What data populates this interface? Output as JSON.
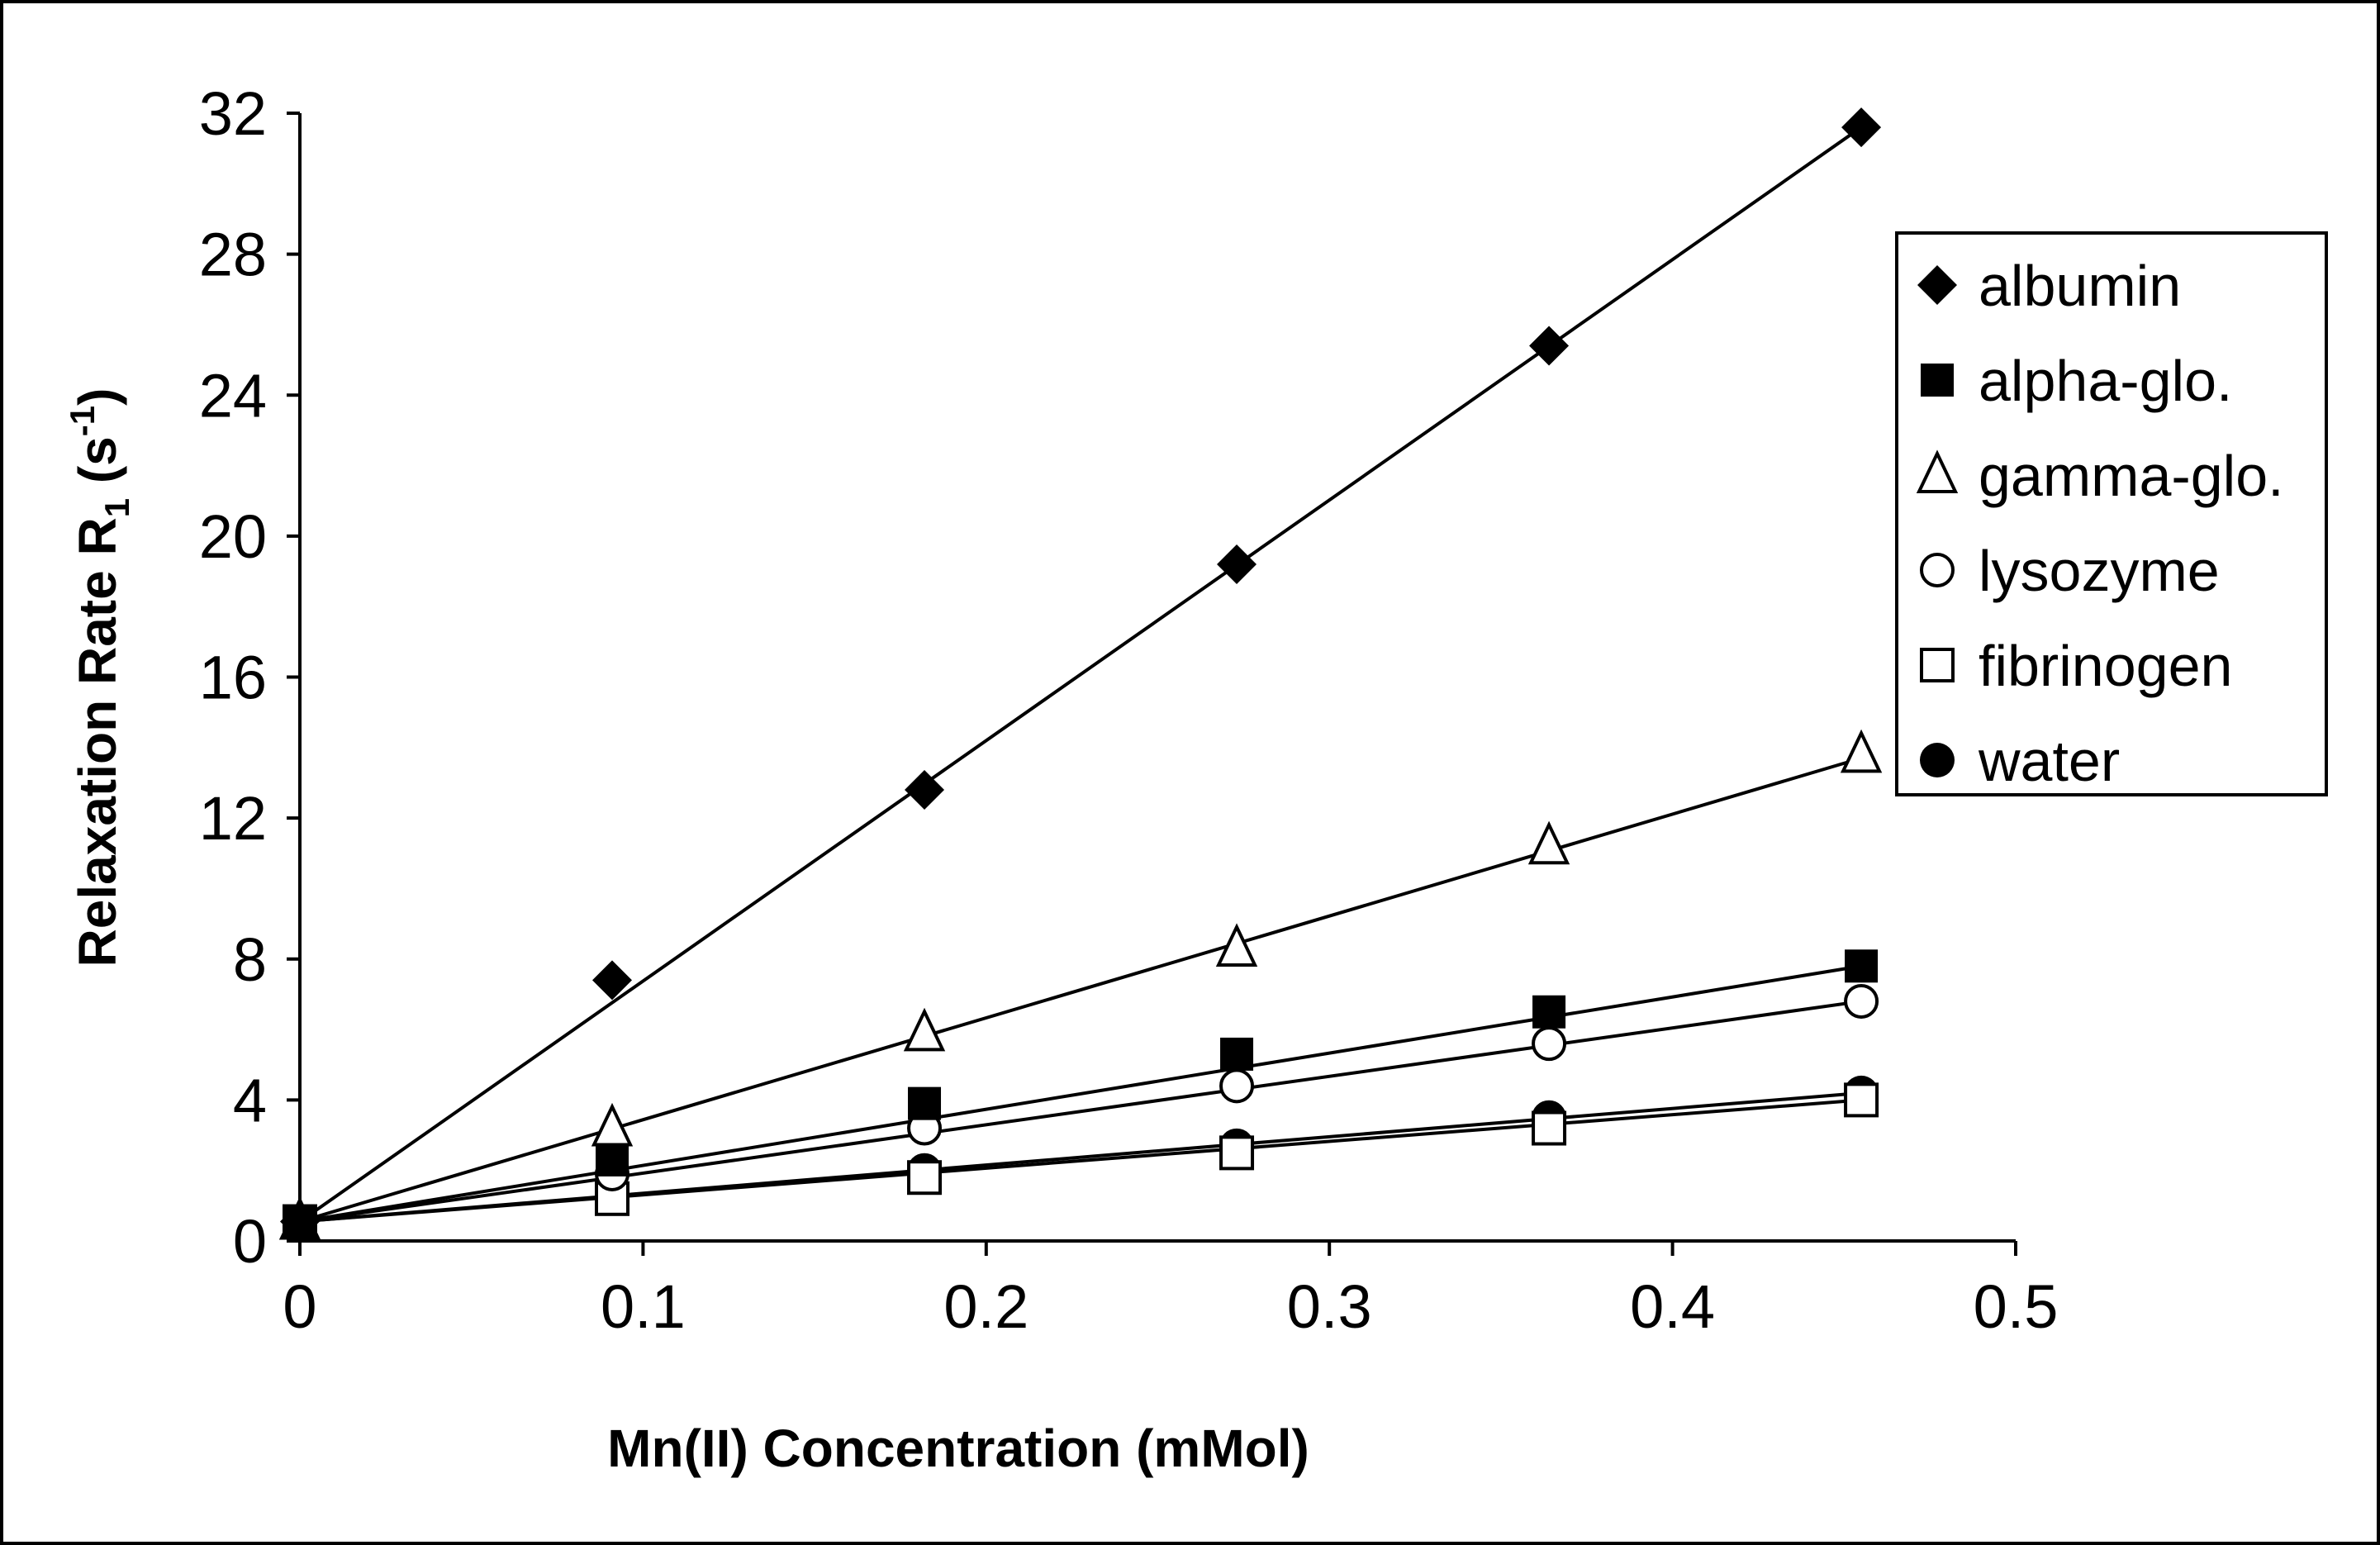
{
  "chart_data": {
    "type": "scatter",
    "title": "",
    "xlabel": "Mn(II) Concentration  (mMol)",
    "ylabel": {
      "main": "Relaxation  Rate  R",
      "subscript": "1",
      "unit_open": " (s",
      "superscript": "-1",
      "unit_close": ")"
    },
    "xlim": [
      0,
      0.5
    ],
    "ylim": [
      0,
      32
    ],
    "xticks": [
      0,
      0.1,
      0.2,
      0.3,
      0.4,
      0.5
    ],
    "xtick_labels": [
      "0",
      "0.1",
      "0.2",
      "0.3",
      "0.4",
      "0.5"
    ],
    "yticks": [
      0,
      4,
      8,
      12,
      16,
      20,
      24,
      28,
      32
    ],
    "ytick_labels": [
      "0",
      "4",
      "8",
      "12",
      "16",
      "20",
      "24",
      "28",
      "32"
    ],
    "grid": false,
    "legend_position": "right",
    "x": [
      0,
      0.091,
      0.182,
      0.273,
      0.364,
      0.455
    ],
    "series": [
      {
        "name": "albumin",
        "marker": "diamond-filled",
        "values": [
          0.55,
          7.4,
          12.8,
          19.2,
          25.4,
          31.6
        ],
        "fit": [
          0.55,
          31.6
        ]
      },
      {
        "name": "alpha-glo.",
        "marker": "square-filled",
        "values": [
          0.55,
          2.3,
          3.9,
          5.3,
          6.5,
          7.8
        ],
        "fit": [
          0.55,
          7.8
        ]
      },
      {
        "name": "gamma-glo.",
        "marker": "triangle-open",
        "values": [
          0.55,
          3.2,
          5.9,
          8.3,
          11.2,
          13.8
        ],
        "fit": [
          0.55,
          13.7
        ]
      },
      {
        "name": "lysozyme",
        "marker": "circle-open",
        "values": [
          0.55,
          1.9,
          3.2,
          4.4,
          5.6,
          6.8
        ],
        "fit": [
          0.55,
          6.8
        ]
      },
      {
        "name": "fibrinogen",
        "marker": "square-open",
        "values": [
          0.55,
          1.2,
          1.8,
          2.5,
          3.2,
          4.0
        ],
        "fit": [
          0.55,
          4.0
        ]
      },
      {
        "name": "water",
        "marker": "circle-filled",
        "values": [
          0.55,
          1.4,
          2.0,
          2.7,
          3.5,
          4.2
        ],
        "fit": [
          0.55,
          4.2
        ]
      }
    ]
  }
}
